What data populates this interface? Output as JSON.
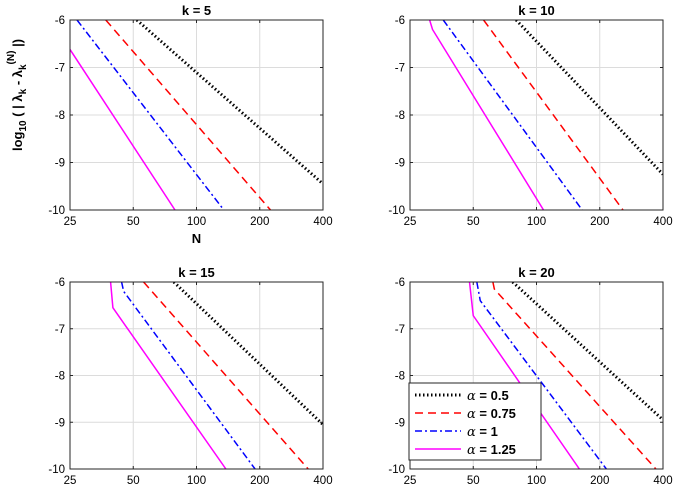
{
  "chart_data": [
    {
      "type": "line",
      "title": "k = 5",
      "xlabel": "N",
      "ylabel": "log10 ( | λk - λk(N) |)",
      "xscale": "log",
      "xlim": [
        25,
        400
      ],
      "ylim": [
        -10,
        -6
      ],
      "xticks": [
        "25",
        "50",
        "100",
        "200",
        "400"
      ],
      "yticks": [
        "-6",
        "-7",
        "-8",
        "-9",
        "-10"
      ],
      "grid": true,
      "series": [
        {
          "name": "α = 0.5",
          "color": "#000000",
          "style": "dotted",
          "points": [
            [
              52,
              -6.0
            ],
            [
              400,
              -9.45
            ]
          ]
        },
        {
          "name": "α = 0.75",
          "color": "#ff0000",
          "style": "dashed",
          "points": [
            [
              37,
              -6.0
            ],
            [
              225,
              -10.0
            ]
          ]
        },
        {
          "name": "α = 1",
          "color": "#0000ff",
          "style": "dashdot",
          "points": [
            [
              27,
              -6.0
            ],
            [
              135,
              -10.0
            ]
          ]
        },
        {
          "name": "α = 1.25",
          "color": "#ff00ff",
          "style": "solid",
          "points": [
            [
              25,
              -6.62
            ],
            [
              79,
              -10.0
            ]
          ]
        }
      ]
    },
    {
      "type": "line",
      "title": "k = 10",
      "xscale": "log",
      "xlim": [
        25,
        400
      ],
      "ylim": [
        -10,
        -6
      ],
      "xticks": [
        "25",
        "50",
        "100",
        "200",
        "400"
      ],
      "yticks": [
        "-6",
        "-7",
        "-8",
        "-9",
        "-10"
      ],
      "grid": true,
      "series": [
        {
          "name": "α = 0.5",
          "color": "#000000",
          "style": "dotted",
          "points": [
            [
              80,
              -6.0
            ],
            [
              400,
              -9.25
            ]
          ]
        },
        {
          "name": "α = 0.75",
          "color": "#ff0000",
          "style": "dashed",
          "points": [
            [
              56,
              -6.0
            ],
            [
              258,
              -10.0
            ]
          ]
        },
        {
          "name": "α = 1",
          "color": "#0000ff",
          "style": "dashdot",
          "points": [
            [
              36,
              -6.0
            ],
            [
              165,
              -10.0
            ]
          ]
        },
        {
          "name": "α = 1.25",
          "color": "#ff00ff",
          "style": "solid",
          "points": [
            [
              31,
              -6.0
            ],
            [
              32,
              -6.2
            ],
            [
              108,
              -10.0
            ]
          ]
        }
      ]
    },
    {
      "type": "line",
      "title": "k = 15",
      "xscale": "log",
      "xlim": [
        25,
        400
      ],
      "ylim": [
        -10,
        -6
      ],
      "xticks": [
        "25",
        "50",
        "100",
        "200",
        "400"
      ],
      "yticks": [
        "-6",
        "-7",
        "-8",
        "-9",
        "-10"
      ],
      "grid": true,
      "series": [
        {
          "name": "α = 0.5",
          "color": "#000000",
          "style": "dotted",
          "points": [
            [
              78,
              -6.0
            ],
            [
              400,
              -9.05
            ]
          ]
        },
        {
          "name": "α = 0.75",
          "color": "#ff0000",
          "style": "dashed",
          "points": [
            [
              56,
              -6.0
            ],
            [
              340,
              -10.0
            ]
          ]
        },
        {
          "name": "α = 1",
          "color": "#0000ff",
          "style": "dashdot",
          "points": [
            [
              44,
              -6.0
            ],
            [
              45,
              -6.2
            ],
            [
              190,
              -10.0
            ]
          ]
        },
        {
          "name": "α = 1.25",
          "color": "#ff00ff",
          "style": "solid",
          "points": [
            [
              39,
              -6.0
            ],
            [
              40,
              -6.55
            ],
            [
              138,
              -10.0
            ]
          ]
        }
      ]
    },
    {
      "type": "line",
      "title": "k = 20",
      "xscale": "log",
      "xlim": [
        25,
        400
      ],
      "ylim": [
        -10,
        -6
      ],
      "xticks": [
        "25",
        "50",
        "100",
        "200",
        "400"
      ],
      "yticks": [
        "-6",
        "-7",
        "-8",
        "-9",
        "-10"
      ],
      "grid": true,
      "series": [
        {
          "name": "α = 0.5",
          "color": "#000000",
          "style": "dotted",
          "points": [
            [
              77,
              -6.0
            ],
            [
              400,
              -8.95
            ]
          ]
        },
        {
          "name": "α = 0.75",
          "color": "#ff0000",
          "style": "dashed",
          "points": [
            [
              62,
              -6.0
            ],
            [
              63,
              -6.15
            ],
            [
              370,
              -10.0
            ]
          ]
        },
        {
          "name": "α = 1",
          "color": "#0000ff",
          "style": "dashdot",
          "points": [
            [
              52,
              -6.0
            ],
            [
              54,
              -6.4
            ],
            [
              215,
              -10.0
            ]
          ]
        },
        {
          "name": "α = 1.25",
          "color": "#ff00ff",
          "style": "solid",
          "points": [
            [
              48,
              -6.0
            ],
            [
              50,
              -6.72
            ],
            [
              160,
              -10.0
            ]
          ]
        }
      ],
      "legend": {
        "placement": "lower-left",
        "entries": [
          {
            "symbol": "α",
            "text": "= 0.5"
          },
          {
            "symbol": "α",
            "text": "= 0.75"
          },
          {
            "symbol": "α",
            "text": "= 1"
          },
          {
            "symbol": "α",
            "text": "= 1.25"
          }
        ]
      }
    }
  ]
}
